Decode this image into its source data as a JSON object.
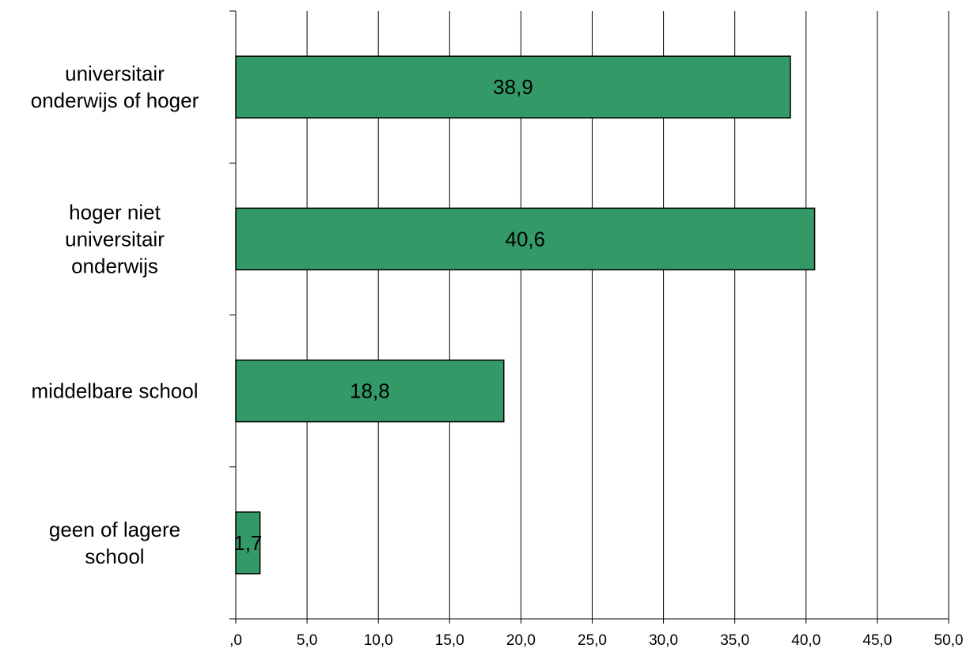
{
  "chart_data": {
    "type": "bar",
    "orientation": "horizontal",
    "categories": [
      [
        "universitair",
        "onderwijs of hoger"
      ],
      [
        "hoger niet",
        "universitair",
        "onderwijs"
      ],
      [
        "middelbare school"
      ],
      [
        "geen of lagere",
        "school"
      ]
    ],
    "values": [
      38.9,
      40.6,
      18.8,
      1.7
    ],
    "data_labels": [
      "38,9",
      "40,6",
      "18,8",
      "1,7"
    ],
    "xlim": [
      0,
      50
    ],
    "x_ticks": [
      0,
      5,
      10,
      15,
      20,
      25,
      30,
      35,
      40,
      45,
      50
    ],
    "x_tick_labels": [
      ",0",
      "5,0",
      "10,0",
      "15,0",
      "20,0",
      "25,0",
      "30,0",
      "35,0",
      "40,0",
      "45,0",
      "50,0"
    ],
    "title": "",
    "xlabel": "",
    "ylabel": "",
    "grid": "vertical",
    "legend": "none",
    "bar_color": "#339966"
  }
}
